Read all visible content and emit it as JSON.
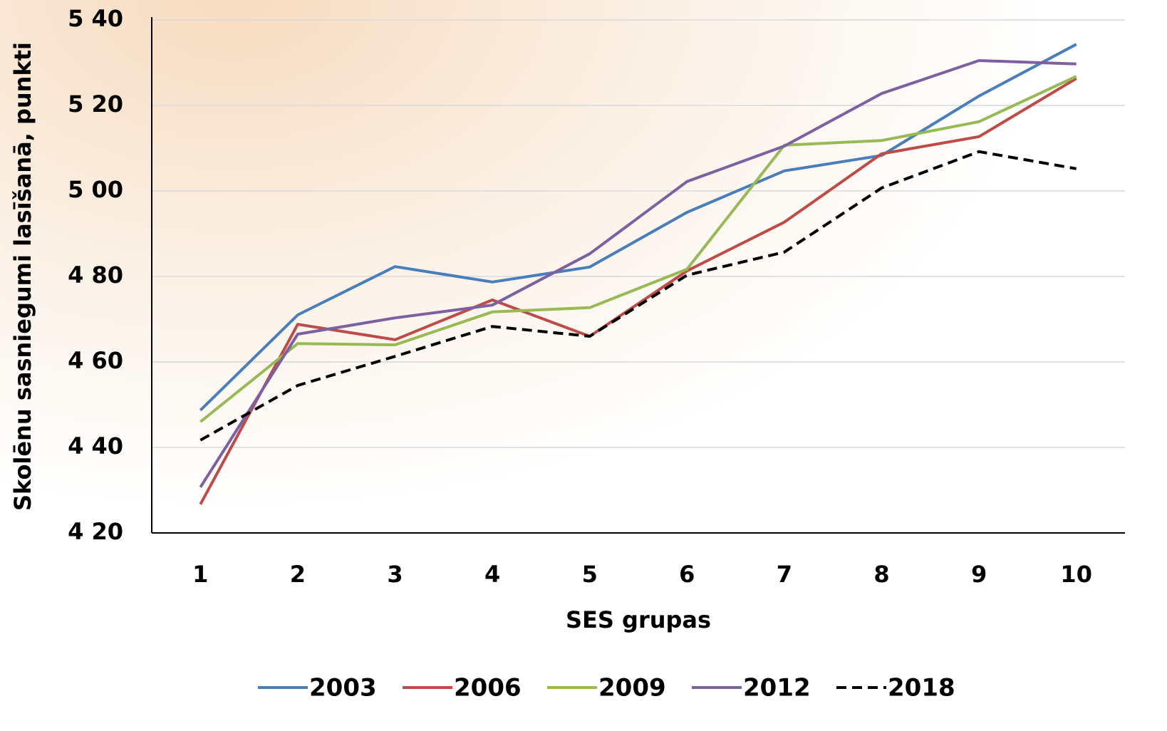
{
  "chart_data": {
    "type": "line",
    "y_label": "Skolēnu sasniegumi lasīšanā, punkti",
    "x_label": "SES grupas",
    "categories": [
      "1",
      "2",
      "3",
      "4",
      "5",
      "6",
      "7",
      "8",
      "9",
      "10"
    ],
    "ylim": [
      420,
      540
    ],
    "yticks": [
      {
        "value": 420,
        "label": "4 20"
      },
      {
        "value": 440,
        "label": "4 40"
      },
      {
        "value": 460,
        "label": "4 60"
      },
      {
        "value": 480,
        "label": "4 80"
      },
      {
        "value": 500,
        "label": "5 00"
      },
      {
        "value": 520,
        "label": "5 20"
      },
      {
        "value": 540,
        "label": "5 40"
      }
    ],
    "grid": true,
    "legend": "bottom",
    "series": [
      {
        "name": "2003",
        "color": "#4a7ebb",
        "line_style": "solid",
        "values": [
          448.7,
          471,
          482.3,
          478.7,
          482.2,
          495,
          504.7,
          508.3,
          522.2,
          534.3
        ]
      },
      {
        "name": "2006",
        "color": "#be4b48",
        "line_style": "solid",
        "values": [
          426.7,
          468.8,
          465.2,
          474.5,
          466,
          481.3,
          492.7,
          508.7,
          512.7,
          526.3
        ]
      },
      {
        "name": "2009",
        "color": "#98b954",
        "line_style": "solid",
        "values": [
          446,
          464.3,
          464,
          471.7,
          472.7,
          481.7,
          510.7,
          511.8,
          516.2,
          526.8
        ]
      },
      {
        "name": "2012",
        "color": "#7d60a0",
        "line_style": "solid",
        "values": [
          430.7,
          466.5,
          470.3,
          473.3,
          485.3,
          502.2,
          510.5,
          522.8,
          530.5,
          529.7
        ]
      },
      {
        "name": "2018",
        "color": "#000000",
        "line_style": "dashed",
        "values": [
          441.7,
          454.5,
          461.3,
          468.3,
          466,
          480.3,
          485.7,
          500.7,
          509.2,
          505.2
        ]
      }
    ]
  }
}
